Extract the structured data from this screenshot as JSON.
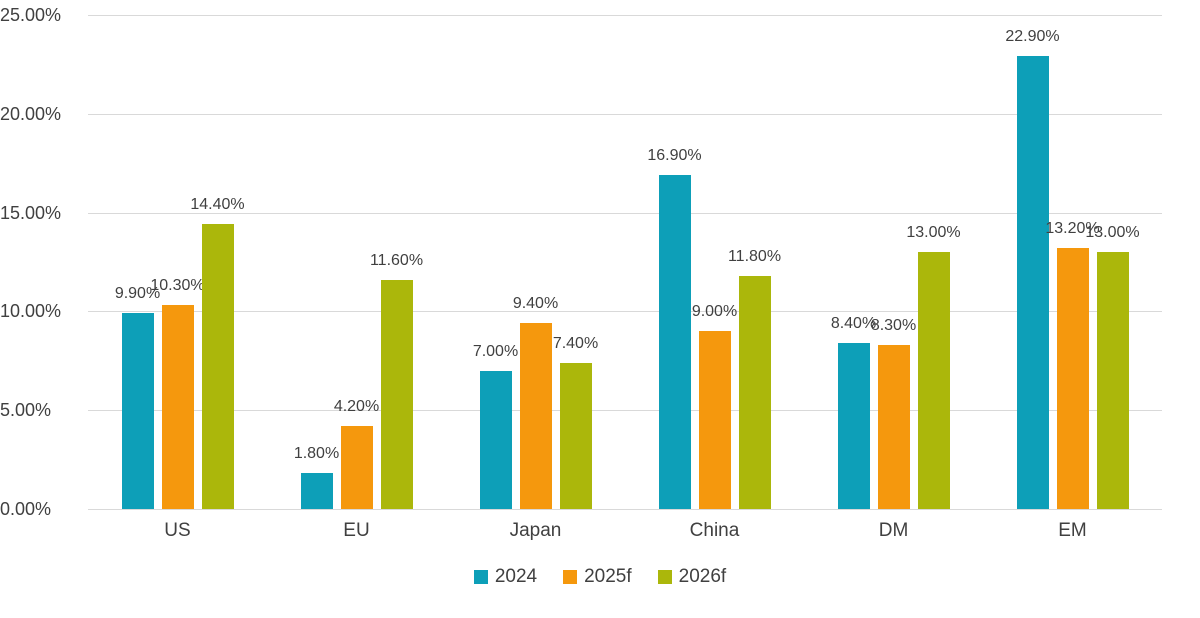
{
  "chart_data": {
    "type": "bar",
    "title": "",
    "xlabel": "",
    "ylabel": "",
    "categories": [
      "US",
      "EU",
      "Japan",
      "China",
      "DM",
      "EM"
    ],
    "series": [
      {
        "name": "2024",
        "color": "#0D9FB8",
        "values": [
          9.9,
          1.8,
          7.0,
          16.9,
          8.4,
          22.9
        ],
        "labels": [
          "9.90%",
          "1.80%",
          "7.00%",
          "16.90%",
          "8.40%",
          "22.90%"
        ]
      },
      {
        "name": "2025f",
        "color": "#F5980D",
        "values": [
          10.3,
          4.2,
          9.4,
          9.0,
          8.3,
          13.2
        ],
        "labels": [
          "10.30%",
          "4.20%",
          "9.40%",
          "9.00%",
          "8.30%",
          "13.20%"
        ]
      },
      {
        "name": "2026f",
        "color": "#ABB70B",
        "values": [
          14.4,
          11.6,
          7.4,
          11.8,
          13.0,
          13.0
        ],
        "labels": [
          "14.40%",
          "11.60%",
          "7.40%",
          "11.80%",
          "13.00%",
          "13.00%"
        ]
      }
    ],
    "y_axis": {
      "ylim": [
        0,
        25
      ],
      "grid": true,
      "ticks": [
        {
          "value": 0,
          "label": "0.00%"
        },
        {
          "value": 5,
          "label": "5.00%"
        },
        {
          "value": 10,
          "label": "10.00%"
        },
        {
          "value": 15,
          "label": "15.00%"
        },
        {
          "value": 20,
          "label": "20.00%"
        },
        {
          "value": 25,
          "label": "25.00%"
        }
      ]
    },
    "legend": {
      "position": "bottom",
      "entries": [
        "2024",
        "2025f",
        "2026f"
      ]
    }
  },
  "colors": {
    "text": "#404040",
    "gridline": "#D9D9D9",
    "background": "#FFFFFF"
  }
}
